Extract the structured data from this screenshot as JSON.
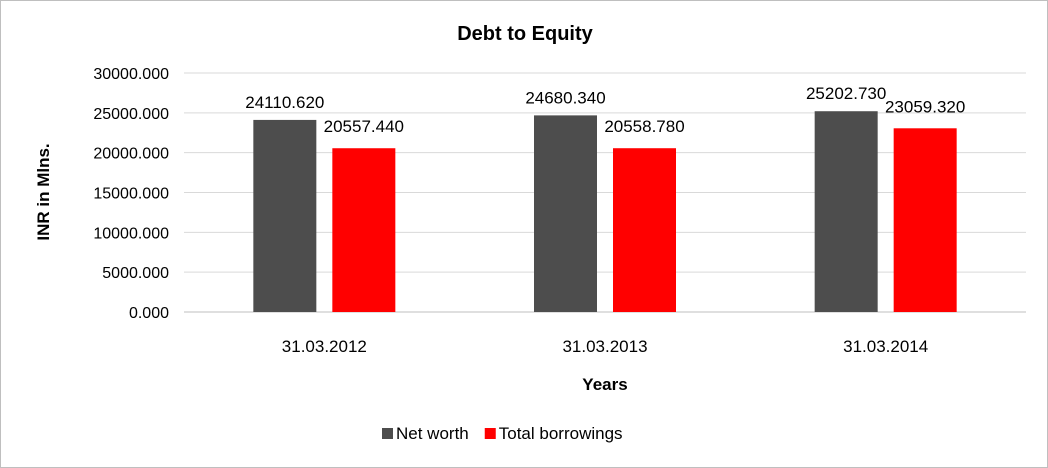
{
  "chart_data": {
    "type": "bar",
    "title": "Debt to Equity",
    "xlabel": "Years",
    "ylabel": "INR in Mlns.",
    "categories": [
      "31.03.2012",
      "31.03.2013",
      "31.03.2014"
    ],
    "series": [
      {
        "name": "Net worth",
        "values": [
          24110.62,
          24680.34,
          25202.73
        ],
        "labels": [
          "24110.620",
          "24680.340",
          "25202.730"
        ],
        "color": "#4d4d4d"
      },
      {
        "name": "Total borrowings",
        "values": [
          20557.44,
          20558.78,
          23059.32
        ],
        "labels": [
          "20557.440",
          "20558.780",
          "23059.320"
        ],
        "color": "#ff0000"
      }
    ],
    "ylim": [
      0,
      30000
    ],
    "yticks": [
      "0.000",
      "5000.000",
      "10000.000",
      "15000.000",
      "20000.000",
      "25000.000",
      "30000.000"
    ],
    "grid": true,
    "legend": "bottom"
  }
}
